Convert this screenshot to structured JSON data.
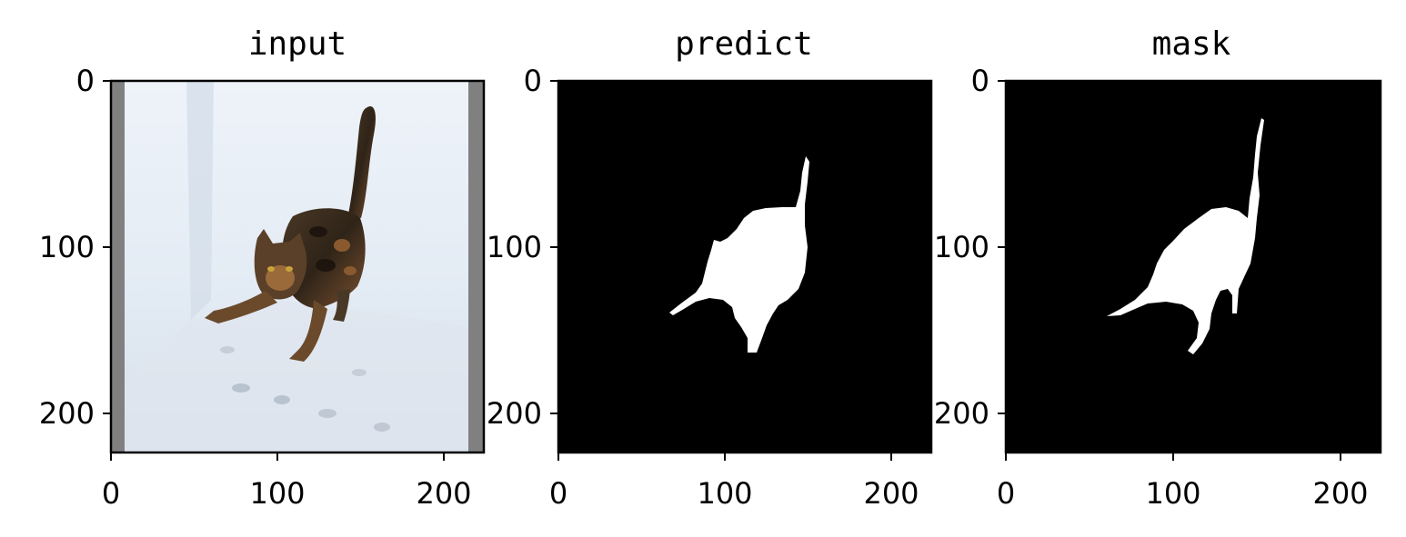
{
  "panels": [
    {
      "title": "input",
      "content": "cat-photo",
      "xticks": [
        "0",
        "100",
        "200"
      ],
      "yticks": [
        "0",
        "100",
        "200"
      ]
    },
    {
      "title": "predict",
      "content": "predicted-mask",
      "xticks": [
        "0",
        "100",
        "200"
      ],
      "yticks": [
        "0",
        "100",
        "200"
      ]
    },
    {
      "title": "mask",
      "content": "ground-truth-mask",
      "xticks": [
        "0",
        "100",
        "200"
      ],
      "yticks": [
        "0",
        "100",
        "200"
      ]
    }
  ],
  "axis_range": [
    0,
    224
  ],
  "colors": {
    "background": "#ffffff",
    "mask_background": "#000000",
    "mask_foreground": "#ffffff",
    "pad_gray": "#808080",
    "snow": "#e8eef6",
    "cat_dark": "#3a2e22",
    "cat_orange": "#8a5a2e"
  }
}
